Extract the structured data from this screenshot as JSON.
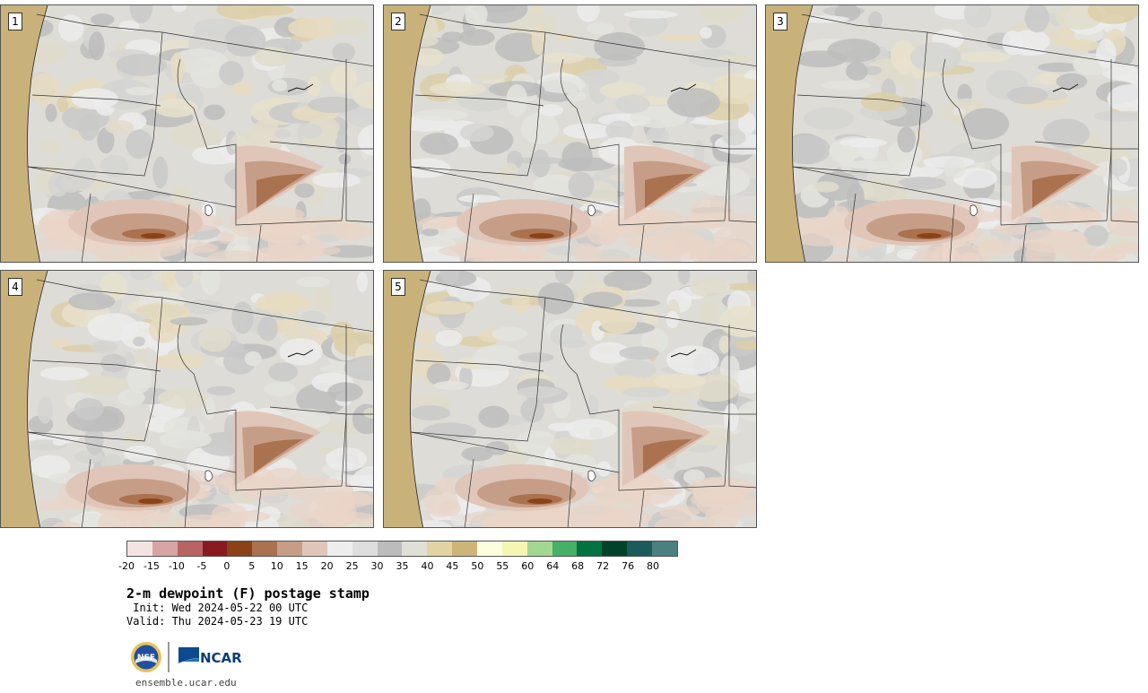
{
  "panels": [
    {
      "label": "1"
    },
    {
      "label": "2"
    },
    {
      "label": "3"
    },
    {
      "label": "4"
    },
    {
      "label": "5"
    }
  ],
  "colorbar": {
    "colors": [
      "#f3e4e4",
      "#d9a4a4",
      "#b86464",
      "#8a1a22",
      "#8b4216",
      "#ab7250",
      "#c69e88",
      "#e0c6b8",
      "#ededed",
      "#dedede",
      "#bcbcbc",
      "#e0e0d6",
      "#e2d3a4",
      "#cdb57a",
      "#fefde0",
      "#f6f6b4",
      "#a3d893",
      "#45b067",
      "#007340",
      "#00432a",
      "#1b5b5c",
      "#4b8080"
    ],
    "ticks": [
      "-20",
      "-15",
      "-10",
      "-5",
      "0",
      "5",
      "10",
      "15",
      "20",
      "25",
      "30",
      "35",
      "40",
      "45",
      "50",
      "55",
      "60",
      "64",
      "68",
      "72",
      "76",
      "80"
    ]
  },
  "title": "2-m dewpoint (F) postage stamp",
  "init": " Init: Wed 2024-05-22 00 UTC",
  "valid": "Valid: Thu 2024-05-23 19 UTC",
  "logos": {
    "nsf": "NSF",
    "ncar": "NCAR"
  },
  "url": "ensemble.ucar.edu"
}
